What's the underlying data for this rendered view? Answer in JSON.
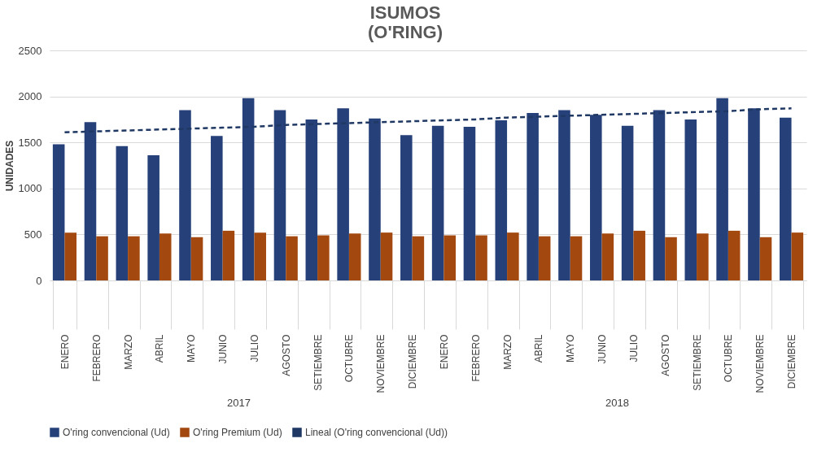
{
  "chart_data": {
    "type": "bar",
    "title": "ISUMOS\n(O'RING)",
    "ylabel": "UNIDADES",
    "categories": [
      "ENERO",
      "FEBRERO",
      "MARZO",
      "ABRIL",
      "MAYO",
      "JUNIO",
      "JULIO",
      "AGOSTO",
      "SETIEMBRE",
      "OCTUBRE",
      "NOVIEMBRE",
      "DICIEMBRE",
      "ENERO",
      "FEBRERO",
      "MARZO",
      "ABRIL",
      "MAYO",
      "JUNIO",
      "JULIO",
      "AGOSTO",
      "SETIEMBRE",
      "OCTUBRE",
      "NOVIEMBRE",
      "DICIEMBRE"
    ],
    "series": [
      {
        "name": "O'ring convencional (Ud)",
        "color": "#26417a",
        "values": [
          1480,
          1720,
          1460,
          1360,
          1850,
          1570,
          1980,
          1850,
          1750,
          1870,
          1760,
          1580,
          1680,
          1670,
          1740,
          1820,
          1850,
          1800,
          1680,
          1850,
          1750,
          1980,
          1870,
          1770
        ]
      },
      {
        "name": "O'ring Premium (Ud)",
        "color": "#a3480f",
        "values": [
          520,
          480,
          480,
          510,
          470,
          540,
          520,
          480,
          490,
          510,
          520,
          480,
          490,
          490,
          520,
          480,
          480,
          510,
          540,
          470,
          510,
          540,
          470,
          520
        ]
      },
      {
        "name": "Lineal (O'ring convencional (Ud))",
        "type": "line",
        "line_style": "dashed",
        "color": "#1f3864",
        "values": [
          1610,
          1620,
          1630,
          1640,
          1650,
          1660,
          1670,
          1690,
          1700,
          1710,
          1720,
          1730,
          1740,
          1750,
          1770,
          1780,
          1790,
          1800,
          1810,
          1820,
          1830,
          1840,
          1860,
          1870
        ]
      }
    ],
    "annotations": [
      "2017",
      "2018"
    ],
    "ylim": [
      0,
      2500
    ],
    "yticks": [
      0,
      500,
      1000,
      1500,
      2000,
      2500
    ],
    "grid": "y",
    "legend": "bottom"
  }
}
